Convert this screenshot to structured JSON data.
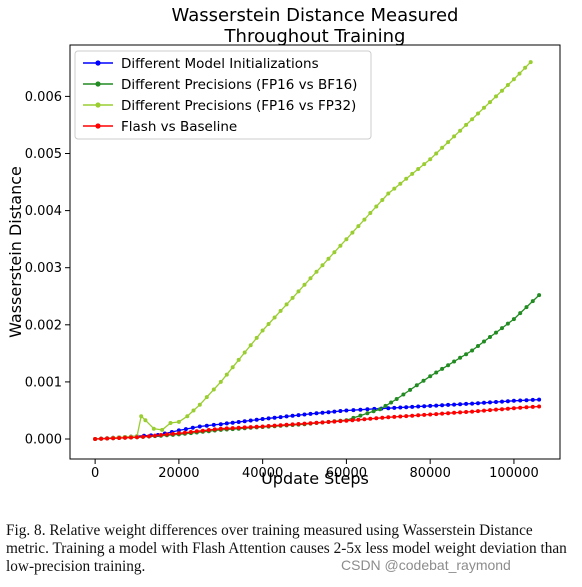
{
  "chart_data": {
    "type": "line",
    "title": [
      "Wasserstein Distance Measured",
      "Throughout Training"
    ],
    "xlabel": "Update Steps",
    "ylabel": "Wasserstein Distance",
    "xlim": [
      -6000,
      111000
    ],
    "ylim": [
      -0.00035,
      0.0069
    ],
    "x_ticks": [
      0,
      20000,
      40000,
      60000,
      80000,
      100000
    ],
    "x_tick_labels": [
      "0",
      "20000",
      "40000",
      "60000",
      "80000",
      "100000"
    ],
    "y_ticks": [
      0.0,
      0.001,
      0.002,
      0.003,
      0.004,
      0.005,
      0.006
    ],
    "y_tick_labels": [
      "0.000",
      "0.001",
      "0.002",
      "0.003",
      "0.004",
      "0.005",
      "0.006"
    ],
    "grid": false,
    "legend_position": "top-left",
    "series": [
      {
        "name": "Different Model Initializations",
        "color": "#0000ff",
        "points": [
          [
            0,
            0
          ],
          [
            10000,
            5e-05
          ],
          [
            15000,
            7e-05
          ],
          [
            20000,
            0.00015
          ],
          [
            25000,
            0.00022
          ],
          [
            30000,
            0.00026
          ],
          [
            40000,
            0.00035
          ],
          [
            50000,
            0.00043
          ],
          [
            60000,
            0.0005
          ],
          [
            65000,
            0.00052
          ],
          [
            70000,
            0.00054
          ],
          [
            80000,
            0.00058
          ],
          [
            90000,
            0.00062
          ],
          [
            100000,
            0.00067
          ],
          [
            106000,
            0.00069
          ]
        ]
      },
      {
        "name": "Different Precisions (FP16 vs BF16)",
        "color": "#228b22",
        "points": [
          [
            0,
            0
          ],
          [
            10000,
            3e-05
          ],
          [
            20000,
            8e-05
          ],
          [
            30000,
            0.00016
          ],
          [
            40000,
            0.00021
          ],
          [
            50000,
            0.00026
          ],
          [
            60000,
            0.00033
          ],
          [
            65000,
            0.00045
          ],
          [
            68000,
            0.00052
          ],
          [
            72000,
            0.0007
          ],
          [
            80000,
            0.0011
          ],
          [
            90000,
            0.00155
          ],
          [
            100000,
            0.0021
          ],
          [
            106000,
            0.00252
          ]
        ]
      },
      {
        "name": "Different Precisions (FP16 vs FP32)",
        "color": "#9acd32",
        "points": [
          [
            0,
            0
          ],
          [
            10000,
            5e-05
          ],
          [
            11000,
            0.0004
          ],
          [
            12000,
            0.00033
          ],
          [
            14000,
            0.00018
          ],
          [
            16000,
            0.00016
          ],
          [
            18000,
            0.00028
          ],
          [
            20000,
            0.0003
          ],
          [
            22000,
            0.0004
          ],
          [
            25000,
            0.0006
          ],
          [
            30000,
            0.001
          ],
          [
            40000,
            0.0019
          ],
          [
            50000,
            0.0027
          ],
          [
            60000,
            0.0035
          ],
          [
            70000,
            0.0043
          ],
          [
            80000,
            0.0049
          ],
          [
            90000,
            0.0056
          ],
          [
            100000,
            0.0063
          ],
          [
            104000,
            0.0066
          ]
        ]
      },
      {
        "name": "Flash vs Baseline",
        "color": "#ff0000",
        "points": [
          [
            0,
            0
          ],
          [
            10000,
            3e-05
          ],
          [
            20000,
            0.0001
          ],
          [
            30000,
            0.00018
          ],
          [
            40000,
            0.00022
          ],
          [
            50000,
            0.00027
          ],
          [
            60000,
            0.00032
          ],
          [
            70000,
            0.00038
          ],
          [
            80000,
            0.00043
          ],
          [
            90000,
            0.00048
          ],
          [
            100000,
            0.00054
          ],
          [
            106000,
            0.00057
          ]
        ]
      }
    ]
  },
  "caption": "Fig. 8.  Relative weight differences over training measured using Wasserstein Distance metric. Training a model with Flash Attention causes 2-5x less model weight deviation than low-precision training.",
  "watermark": "CSDN @codebat_raymond"
}
